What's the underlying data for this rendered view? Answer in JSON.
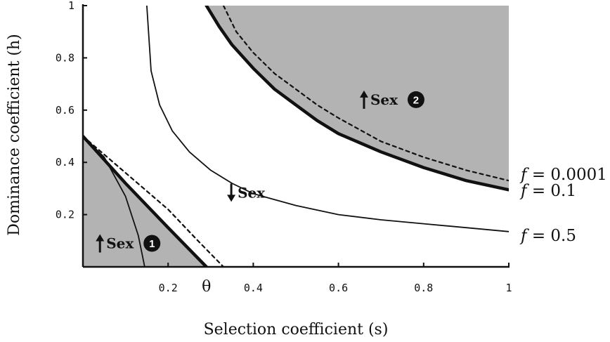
{
  "chart_data": {
    "type": "line",
    "xlabel": "Selection coefficient (s)",
    "ylabel": "Dominance coefficient (h)",
    "xlim": [
      0,
      1
    ],
    "ylim": [
      0,
      1
    ],
    "x_ticks": [
      0.2,
      0.4,
      0.6,
      0.8,
      1
    ],
    "x_tick_labels": [
      "0.2",
      "0.4",
      "0.6",
      "0.8",
      "1"
    ],
    "y_ticks": [
      0.2,
      0.4,
      0.6,
      0.8,
      1
    ],
    "y_tick_labels": [
      "0.2",
      "0.4",
      "0.6",
      "0.8",
      "1"
    ],
    "theta": {
      "label": "θ",
      "x": 0.29
    },
    "shaded_regions": [
      {
        "label": "Sex",
        "badge": "1",
        "arrow": "up",
        "color": "#b3b3b3",
        "points": [
          [
            0,
            0.5
          ],
          [
            0.29,
            0
          ],
          [
            0,
            0
          ]
        ]
      },
      {
        "label": "Sex",
        "badge": "2",
        "arrow": "up",
        "color": "#b3b3b3",
        "points": [
          [
            0.29,
            1
          ],
          [
            0.32,
            0.92
          ],
          [
            0.35,
            0.85
          ],
          [
            0.4,
            0.76
          ],
          [
            0.45,
            0.68
          ],
          [
            0.5,
            0.62
          ],
          [
            0.55,
            0.56
          ],
          [
            0.6,
            0.51
          ],
          [
            0.7,
            0.44
          ],
          [
            0.8,
            0.38
          ],
          [
            0.9,
            0.33
          ],
          [
            1,
            0.295
          ],
          [
            1,
            1
          ]
        ]
      }
    ],
    "annotations": [
      {
        "label": "Sex",
        "arrow": "down",
        "x": 0.35,
        "y": 0.3
      }
    ],
    "series": [
      {
        "name": "f = 0.1",
        "label_prefix": "f",
        "label_value": "= 0.1",
        "style": "thick",
        "segments": [
          [
            [
              0,
              0.5
            ],
            [
              0.1,
              0.32
            ],
            [
              0.2,
              0.15
            ],
            [
              0.29,
              0
            ]
          ],
          [
            [
              0.29,
              1
            ],
            [
              0.32,
              0.92
            ],
            [
              0.35,
              0.85
            ],
            [
              0.4,
              0.76
            ],
            [
              0.45,
              0.68
            ],
            [
              0.5,
              0.62
            ],
            [
              0.55,
              0.56
            ],
            [
              0.6,
              0.51
            ],
            [
              0.7,
              0.44
            ],
            [
              0.8,
              0.38
            ],
            [
              0.9,
              0.33
            ],
            [
              1,
              0.295
            ]
          ]
        ]
      },
      {
        "name": "f = 0.0001",
        "label_prefix": "f",
        "label_value": "= 0.0001",
        "style": "dashed",
        "segments": [
          [
            [
              0,
              0.5
            ],
            [
              0.1,
              0.36
            ],
            [
              0.2,
              0.22
            ],
            [
              0.27,
              0.1
            ],
            [
              0.33,
              0
            ]
          ],
          [
            [
              0.33,
              1
            ],
            [
              0.36,
              0.9
            ],
            [
              0.4,
              0.82
            ],
            [
              0.45,
              0.74
            ],
            [
              0.5,
              0.68
            ],
            [
              0.55,
              0.62
            ],
            [
              0.6,
              0.57
            ],
            [
              0.7,
              0.48
            ],
            [
              0.8,
              0.42
            ],
            [
              0.9,
              0.37
            ],
            [
              1,
              0.33
            ]
          ]
        ]
      },
      {
        "name": "f = 0.5",
        "label_prefix": "f",
        "label_value": "= 0.5",
        "style": "thin",
        "segments": [
          [
            [
              0,
              0.5
            ],
            [
              0.05,
              0.42
            ],
            [
              0.1,
              0.27
            ],
            [
              0.13,
              0.12
            ],
            [
              0.145,
              0
            ]
          ],
          [
            [
              0.15,
              1
            ],
            [
              0.16,
              0.75
            ],
            [
              0.18,
              0.62
            ],
            [
              0.21,
              0.52
            ],
            [
              0.25,
              0.44
            ],
            [
              0.3,
              0.37
            ],
            [
              0.35,
              0.32
            ],
            [
              0.4,
              0.28
            ],
            [
              0.5,
              0.235
            ],
            [
              0.6,
              0.2
            ],
            [
              0.7,
              0.18
            ],
            [
              0.8,
              0.165
            ],
            [
              0.9,
              0.15
            ],
            [
              1,
              0.135
            ]
          ]
        ]
      }
    ]
  }
}
